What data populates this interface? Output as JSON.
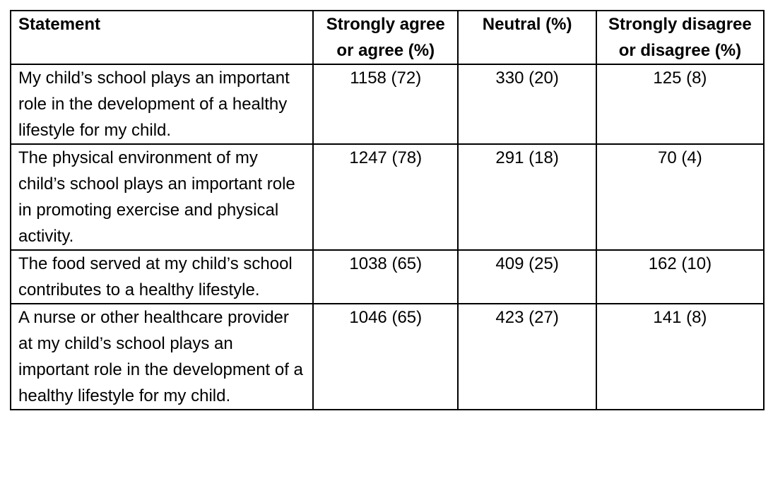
{
  "table": {
    "headers": [
      "Statement",
      "Strongly agree or agree (%)",
      "Neutral (%)",
      "Strongly disagree or disagree (%)"
    ],
    "rows": [
      {
        "statement": "My child’s school plays an important role in the development of a healthy lifestyle for my child.",
        "agree": "1158 (72)",
        "neutral": "330 (20)",
        "disagree": "125 (8)"
      },
      {
        "statement": "The physical environment of my child’s school plays an important role in promoting exercise and physical activity.",
        "agree": "1247 (78)",
        "neutral": "291 (18)",
        "disagree": "70 (4)"
      },
      {
        "statement": "The food served at my child’s school contributes to a healthy lifestyle.",
        "agree": "1038 (65)",
        "neutral": "409 (25)",
        "disagree": "162 (10)"
      },
      {
        "statement": "A nurse or other healthcare provider at my child’s school plays an important role in the development of a healthy lifestyle for my child.",
        "agree": "1046 (65)",
        "neutral": "423 (27)",
        "disagree": "141 (8)"
      }
    ]
  }
}
